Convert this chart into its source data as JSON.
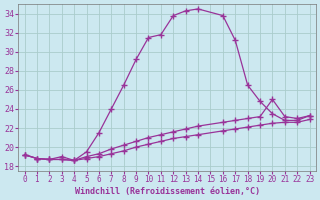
{
  "xlabel": "Windchill (Refroidissement éolien,°C)",
  "bg_color": "#cce8f0",
  "grid_color": "#aacccc",
  "line_color": "#993399",
  "xlim": [
    -0.5,
    23.5
  ],
  "ylim": [
    17.5,
    35.0
  ],
  "yticks": [
    18,
    20,
    22,
    24,
    26,
    28,
    30,
    32,
    34
  ],
  "xticks": [
    0,
    1,
    2,
    3,
    4,
    5,
    6,
    7,
    8,
    9,
    10,
    11,
    12,
    13,
    14,
    15,
    16,
    17,
    18,
    19,
    20,
    21,
    22,
    23
  ],
  "line1_x": [
    0,
    1,
    2,
    3,
    4,
    5,
    6,
    7,
    8,
    9,
    10,
    11,
    12,
    13,
    14,
    16,
    17,
    18,
    19,
    20,
    21,
    22,
    23
  ],
  "line1_y": [
    19.2,
    18.8,
    18.7,
    19.0,
    18.6,
    19.5,
    21.5,
    24.0,
    26.5,
    29.2,
    31.5,
    31.8,
    33.8,
    34.3,
    34.5,
    33.8,
    31.2,
    26.5,
    24.8,
    23.5,
    22.8,
    22.8,
    23.3
  ],
  "line2_x": [
    0,
    1,
    2,
    3,
    4,
    5,
    6,
    7,
    8,
    9,
    10,
    11,
    12,
    13,
    14,
    16,
    17,
    18,
    19,
    20,
    21,
    22,
    23
  ],
  "line2_y": [
    19.2,
    18.8,
    18.7,
    18.7,
    18.6,
    19.0,
    19.3,
    19.8,
    20.2,
    20.6,
    21.0,
    21.3,
    21.6,
    21.9,
    22.2,
    22.6,
    22.8,
    23.0,
    23.2,
    25.0,
    23.2,
    23.0,
    23.3
  ],
  "line3_x": [
    0,
    1,
    2,
    3,
    4,
    5,
    6,
    7,
    8,
    9,
    10,
    11,
    12,
    13,
    14,
    16,
    17,
    18,
    19,
    20,
    21,
    22,
    23
  ],
  "line3_y": [
    19.2,
    18.8,
    18.7,
    18.7,
    18.6,
    18.8,
    19.0,
    19.3,
    19.6,
    20.0,
    20.3,
    20.6,
    20.9,
    21.1,
    21.3,
    21.7,
    21.9,
    22.1,
    22.3,
    22.5,
    22.6,
    22.6,
    22.9
  ]
}
